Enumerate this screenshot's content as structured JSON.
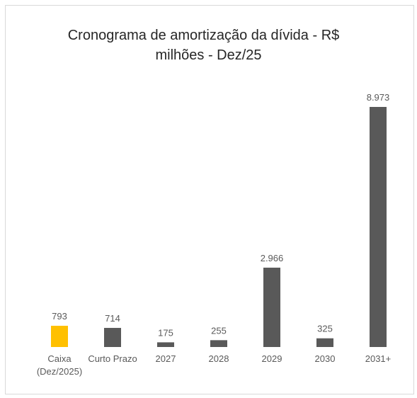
{
  "chart_data": {
    "type": "bar",
    "title_line1": "Cronograma de amortização da dívida - R$",
    "title_line2": "milhões - Dez/25",
    "categories": [
      [
        "Caixa",
        "(Dez/2025)"
      ],
      [
        "Curto Prazo"
      ],
      [
        "2027"
      ],
      [
        "2028"
      ],
      [
        "2029"
      ],
      [
        "2030"
      ],
      [
        "2031+"
      ]
    ],
    "values": [
      793,
      714,
      175,
      255,
      2966,
      325,
      8973
    ],
    "value_labels": [
      "793",
      "714",
      "175",
      "255",
      "2.966",
      "325",
      "8.973"
    ],
    "colors": [
      "#FFC000",
      "#595959",
      "#595959",
      "#595959",
      "#595959",
      "#595959",
      "#595959"
    ],
    "grid": false,
    "legend": "none"
  }
}
